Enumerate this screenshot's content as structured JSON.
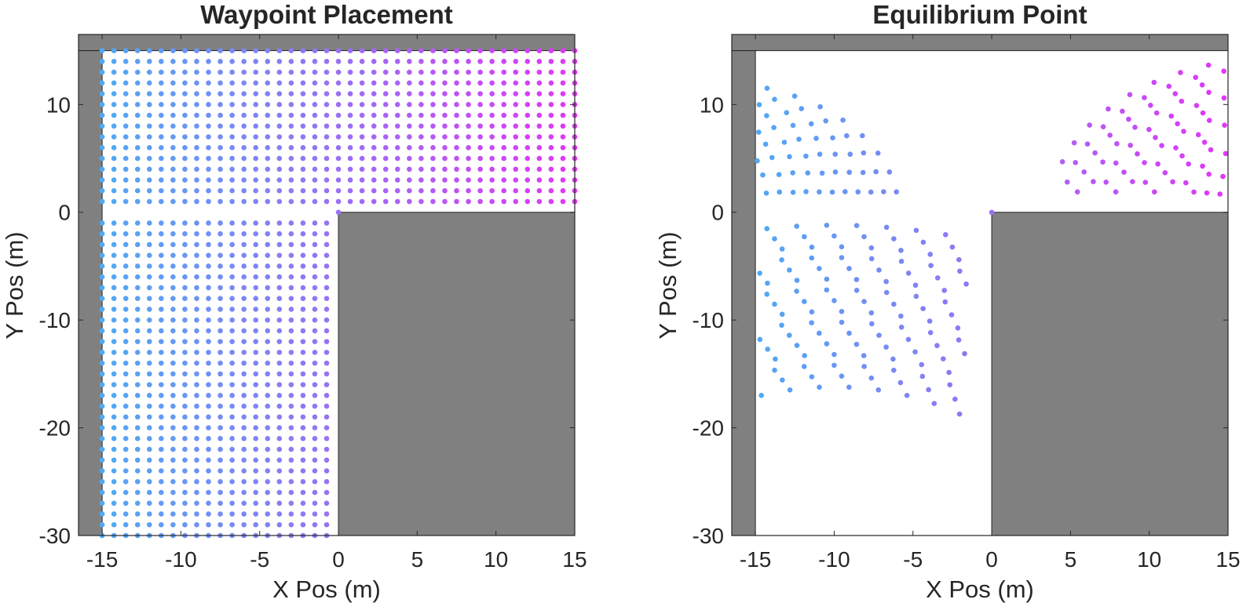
{
  "figure": {
    "background": "#ffffff",
    "obstacle_color": "#808080",
    "gradient_start_color": "#4faaf3",
    "gradient_end_color": "#e236f6"
  },
  "chart_data": [
    {
      "type": "scatter",
      "title": "Waypoint Placement",
      "xlabel": "X Pos (m)",
      "ylabel": "Y Pos (m)",
      "xlim": [
        -16.5,
        15
      ],
      "ylim": [
        -30,
        16.5
      ],
      "xticks": [
        -15,
        -10,
        -5,
        0,
        5,
        10,
        15
      ],
      "yticks": [
        -30,
        -20,
        -10,
        0,
        10
      ],
      "grid": false,
      "legend": "none",
      "color_by": "x",
      "obstacles": [
        {
          "name": "top-wall",
          "x": [
            -16.5,
            15
          ],
          "y": [
            15,
            16.5
          ]
        },
        {
          "name": "left-wall",
          "x": [
            -16.5,
            -15
          ],
          "y": [
            -30,
            15
          ]
        },
        {
          "name": "corner-block",
          "x": [
            0,
            15
          ],
          "y": [
            -30,
            0
          ]
        }
      ],
      "series": [
        {
          "x_range": [
            -15,
            -0.75
          ],
          "x_step": 0.75,
          "y_range": [
            -30,
            -1
          ],
          "y_step": 1
        },
        {
          "x_range": [
            -15,
            15
          ],
          "x_step": 0.75,
          "y_range": [
            1,
            15
          ],
          "y_step": 1
        },
        {
          "x": [
            0
          ],
          "y": [
            0
          ]
        }
      ]
    },
    {
      "type": "scatter",
      "title": "Equilibrium Point",
      "xlabel": "X Pos (m)",
      "ylabel": "Y Pos (m)",
      "xlim": [
        -16.5,
        15
      ],
      "ylim": [
        -30,
        16.5
      ],
      "xticks": [
        -15,
        -10,
        -5,
        0,
        5,
        10,
        15
      ],
      "yticks": [
        -30,
        -20,
        -10,
        0,
        10
      ],
      "grid": false,
      "legend": "none",
      "color_by": "x",
      "obstacles": [
        {
          "name": "top-wall",
          "x": [
            -16.5,
            15
          ],
          "y": [
            15,
            16.5
          ]
        },
        {
          "name": "left-wall",
          "x": [
            -16.5,
            -15
          ],
          "y": [
            -30,
            15
          ]
        },
        {
          "name": "corner-block",
          "x": [
            0,
            15
          ],
          "y": [
            -30,
            0
          ]
        }
      ],
      "series": [
        {
          "arcs_about": [
            -10,
            -30
          ],
          "radii": [
            13.8,
            14.8,
            15.8,
            16.8,
            17.8,
            18.8,
            19.8,
            20.8,
            21.8,
            22.8,
            23.8,
            24.8,
            25.8,
            26.8,
            27.8,
            28.8
          ],
          "x_range": [
            -15,
            -1.5
          ],
          "y_range": [
            -29.5,
            -1.2
          ]
        },
        {
          "arcs_about": [
            -18,
            0
          ],
          "radii": [
            2.5,
            3.3,
            4.1,
            4.9,
            5.7,
            6.5,
            7.3,
            8.1,
            8.9,
            9.7,
            10.5,
            11.3,
            12.1
          ],
          "x_range": [
            -15,
            -3.5
          ],
          "y_range": [
            1,
            15
          ]
        },
        {
          "arcs_about": [
            18,
            0
          ],
          "radii": [
            2.3,
            3.1,
            3.9,
            4.7,
            5.5,
            6.3,
            7.1,
            7.9,
            8.7,
            9.5,
            10.3,
            11.1,
            11.9,
            12.7,
            13.5,
            14.3
          ],
          "x_range": [
            4,
            15
          ],
          "y_range": [
            1,
            16
          ]
        },
        {
          "x": [
            0
          ],
          "y": [
            0
          ]
        }
      ]
    }
  ]
}
